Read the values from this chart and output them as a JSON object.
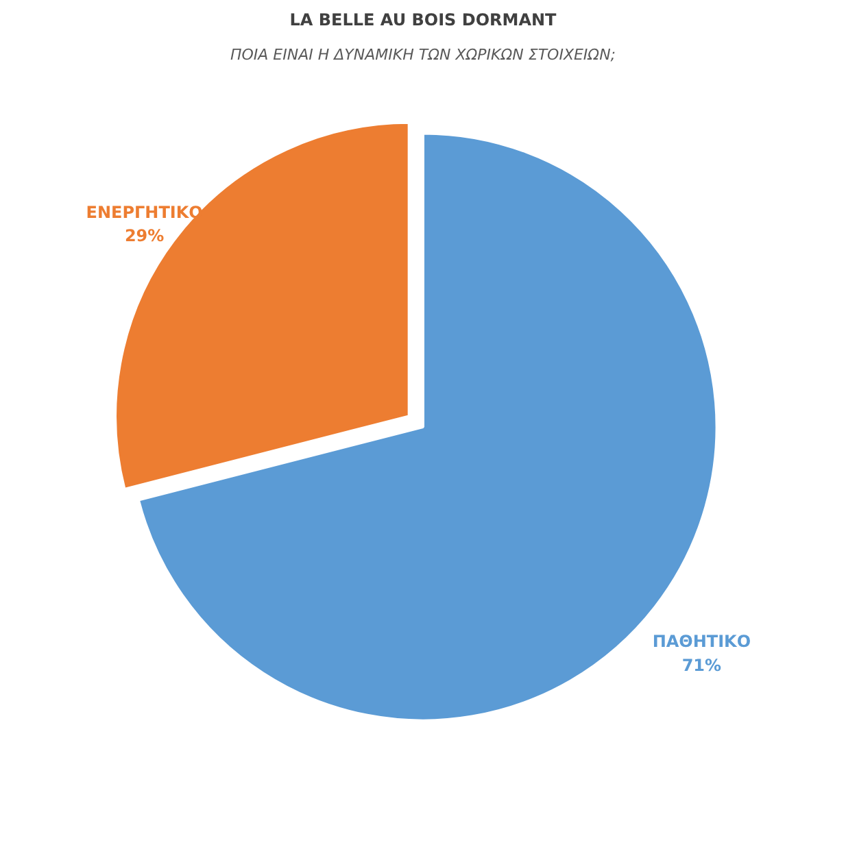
{
  "chart_data": {
    "type": "pie",
    "title": "LA BELLE AU BOIS DORMANT",
    "subtitle": "ΠΟΙΑ ΕΙΝΑΙ Η ΔΥΝΑΜΙΚΗ ΤΩΝ ΧΩΡΙΚΩΝ ΣΤΟΙΧΕΙΩΝ;",
    "categories": [
      "ΠΑΘΗΤΙΚΟ",
      "ΕΝΕΡΓΗΤΙΚΟ"
    ],
    "values": [
      71,
      29
    ],
    "colors": [
      "#5b9bd5",
      "#ed7d31"
    ],
    "value_labels": [
      "71%",
      "29%"
    ]
  }
}
